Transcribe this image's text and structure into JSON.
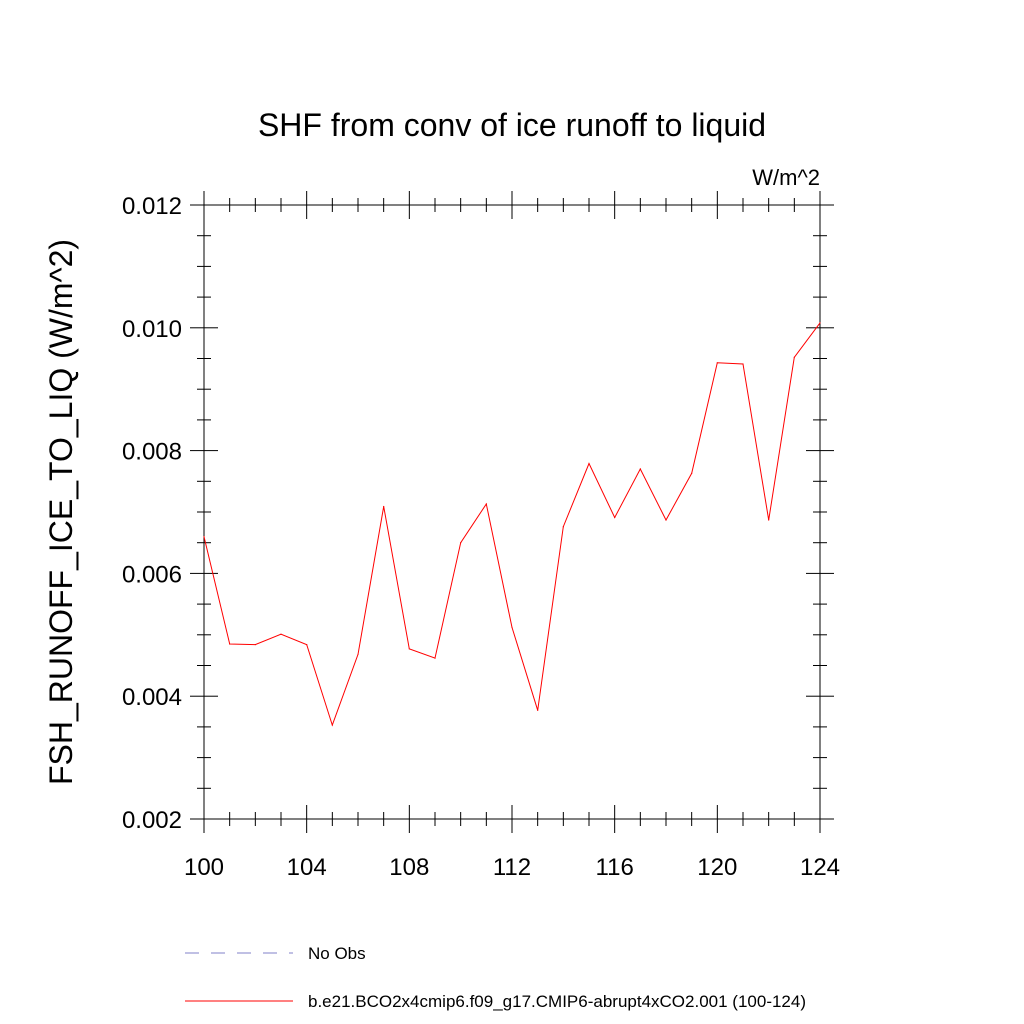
{
  "chart_data": {
    "type": "line",
    "title": "SHF from conv of ice runoff to liquid",
    "units_label": "W/m^2",
    "xlabel": "",
    "ylabel": "FSH_RUNOFF_ICE_TO_LIQ  (W/m^2)",
    "xlim": [
      100,
      124
    ],
    "ylim": [
      0.002,
      0.012
    ],
    "x_ticks": [
      100,
      104,
      108,
      112,
      116,
      120,
      124
    ],
    "x_tick_labels": [
      "100",
      "104",
      "108",
      "112",
      "116",
      "120",
      "124"
    ],
    "y_ticks": [
      0.002,
      0.004,
      0.006,
      0.008,
      0.01,
      0.012
    ],
    "y_tick_labels": [
      "0.002",
      "0.004",
      "0.006",
      "0.008",
      "0.010",
      "0.012"
    ],
    "series": [
      {
        "name": "b.e21.BCO2x4cmip6.f09_g17.CMIP6-abrupt4xCO2.001 (100-124)",
        "color": "#ff0000",
        "dash": "solid",
        "x": [
          100,
          101,
          102,
          103,
          104,
          105,
          106,
          107,
          108,
          109,
          110,
          111,
          112,
          113,
          114,
          115,
          116,
          117,
          118,
          119,
          120,
          121,
          122,
          123,
          124
        ],
        "values": [
          0.0066,
          0.00485,
          0.00484,
          0.00501,
          0.00484,
          0.00353,
          0.00468,
          0.00709,
          0.00477,
          0.00462,
          0.0065,
          0.00713,
          0.00512,
          0.00377,
          0.00676,
          0.00779,
          0.00691,
          0.0077,
          0.00687,
          0.00763,
          0.00943,
          0.00941,
          0.00687,
          0.00952,
          0.01008
        ]
      }
    ],
    "legend": [
      {
        "label": "No Obs",
        "color": "#8080c8",
        "dash": "dashed"
      },
      {
        "label": "b.e21.BCO2x4cmip6.f09_g17.CMIP6-abrupt4xCO2.001 (100-124)",
        "color": "#ff0000",
        "dash": "solid"
      }
    ],
    "legend_placement": "bottom"
  }
}
